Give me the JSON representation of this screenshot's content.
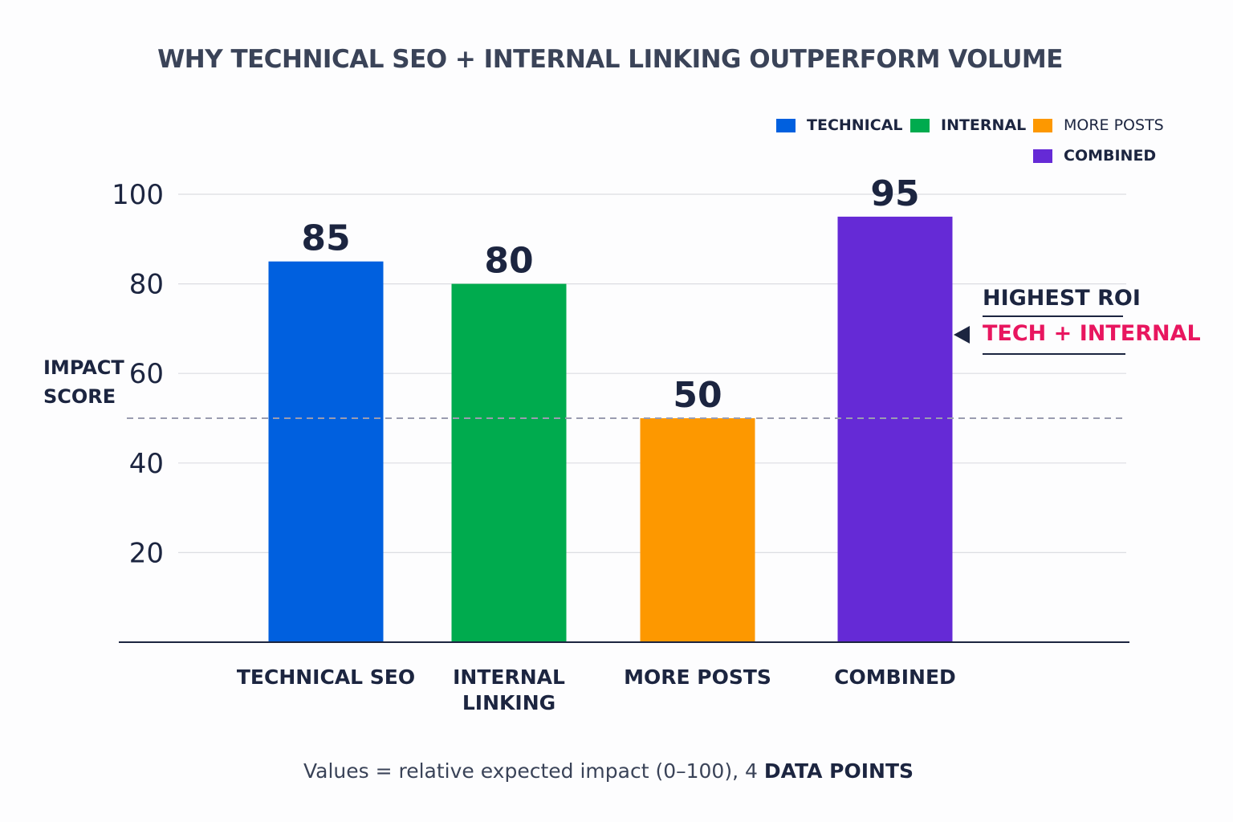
{
  "chart_data": {
    "type": "bar",
    "title": "WHY TECHNICAL SEO + INTERNAL LINKING OUTPERFORM VOLUME",
    "ylabel": "IMPACT SCORE",
    "xlabel": "",
    "ylim": [
      0,
      100
    ],
    "yticks": [
      20,
      40,
      60,
      80,
      100
    ],
    "grid": true,
    "legend_position": "top-right",
    "categories": [
      "TECHNICAL SEO",
      "INTERNAL LINKING",
      "MORE POSTS",
      "COMBINED"
    ],
    "values": [
      85,
      80,
      50,
      95
    ],
    "colors": [
      "#0060df",
      "#00ab4e",
      "#fd9800",
      "#652ad6"
    ],
    "legend": [
      {
        "label": "TECHNICAL",
        "color": "#0060df"
      },
      {
        "label": "INTERNAL",
        "color": "#00ab4e"
      },
      {
        "label": "MORE POSTS",
        "color": "#fd9800"
      },
      {
        "label": "COMBINED",
        "color": "#652ad6"
      }
    ],
    "reference_line": 50,
    "annotation": {
      "line1": "HIGHEST ROI",
      "line2": "TECH + INTERNAL",
      "line2_color": "#e8165f"
    },
    "note_prefix": "Values = relative expected impact (0–100), 4 ",
    "note_bold": "DATA POINTS"
  }
}
